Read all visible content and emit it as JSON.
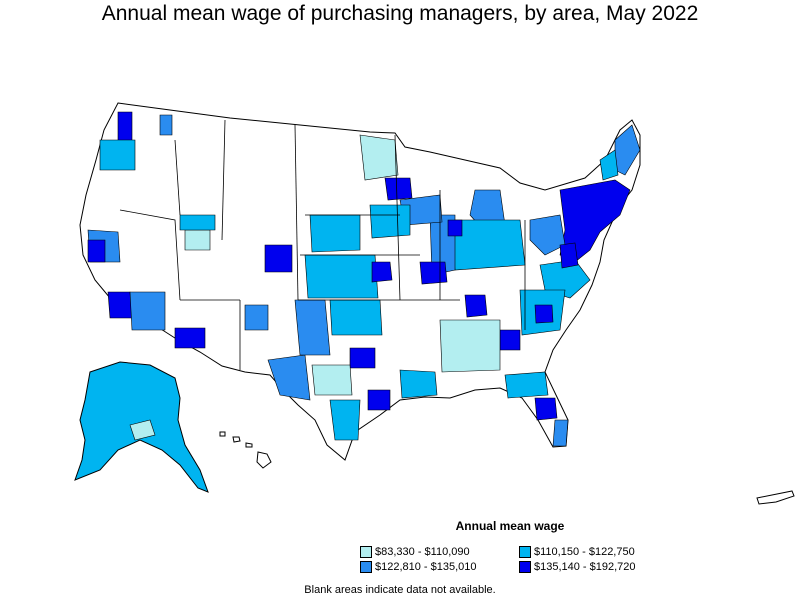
{
  "title": "Annual mean wage of purchasing managers, by area, May 2022",
  "legend": {
    "title": "Annual mean wage",
    "items": [
      {
        "label": "$83,330 - $110,090",
        "color": "#b3eef0"
      },
      {
        "label": "$110,150 - $122,750",
        "color": "#00b4f0"
      },
      {
        "label": "$122,810 - $135,010",
        "color": "#2a8cf0"
      },
      {
        "label": "$135,140 - $192,720",
        "color": "#0000ee"
      }
    ]
  },
  "footnote": "Blank areas indicate data not available.",
  "colors": {
    "no_data": "#ffffff",
    "border": "#000000",
    "tier1": "#b3eef0",
    "tier2": "#00b4f0",
    "tier3": "#2a8cf0",
    "tier4": "#0000ee"
  }
}
